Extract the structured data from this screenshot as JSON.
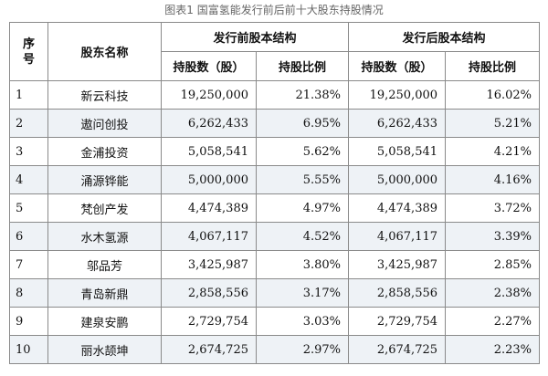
{
  "caption": "图表1 国富氢能发行前后前十大股东持股情况",
  "header": {
    "seq_line1": "序",
    "seq_line2": "号",
    "name": "股东名称",
    "pre_group": "发行前股本结构",
    "post_group": "发行后股本结构",
    "pre_shares": "持股数（股）",
    "pre_ratio": "持股比例",
    "post_shares": "持股数（股）",
    "post_ratio": "持股比例"
  },
  "rows": [
    {
      "no": "1",
      "name": "新云科技",
      "pre_shares": "19,250,000",
      "pre_ratio": "21.38%",
      "post_shares": "19,250,000",
      "post_ratio": "16.02%"
    },
    {
      "no": "2",
      "name": "遨问创投",
      "pre_shares": "6,262,433",
      "pre_ratio": "6.95%",
      "post_shares": "6,262,433",
      "post_ratio": "5.21%"
    },
    {
      "no": "3",
      "name": "金浦投资",
      "pre_shares": "5,058,541",
      "pre_ratio": "5.62%",
      "post_shares": "5,058,541",
      "post_ratio": "4.21%"
    },
    {
      "no": "4",
      "name": "涌源铧能",
      "pre_shares": "5,000,000",
      "pre_ratio": "5.55%",
      "post_shares": "5,000,000",
      "post_ratio": "4.16%"
    },
    {
      "no": "5",
      "name": "梵创产发",
      "pre_shares": "4,474,389",
      "pre_ratio": "4.97%",
      "post_shares": "4,474,389",
      "post_ratio": "3.72%"
    },
    {
      "no": "6",
      "name": "水木氢源",
      "pre_shares": "4,067,117",
      "pre_ratio": "4.52%",
      "post_shares": "4,067,117",
      "post_ratio": "3.39%"
    },
    {
      "no": "7",
      "name": "邬品芳",
      "pre_shares": "3,425,987",
      "pre_ratio": "3.80%",
      "post_shares": "3,425,987",
      "post_ratio": "2.85%"
    },
    {
      "no": "8",
      "name": "青岛新鼎",
      "pre_shares": "2,858,556",
      "pre_ratio": "3.17%",
      "post_shares": "2,858,556",
      "post_ratio": "2.38%"
    },
    {
      "no": "9",
      "name": "建泉安鹏",
      "pre_shares": "2,729,754",
      "pre_ratio": "3.03%",
      "post_shares": "2,729,754",
      "post_ratio": "2.27%"
    },
    {
      "no": "10",
      "name": "丽水颉坤",
      "pre_shares": "2,674,725",
      "pre_ratio": "2.97%",
      "post_shares": "2,674,725",
      "post_ratio": "2.23%"
    }
  ]
}
